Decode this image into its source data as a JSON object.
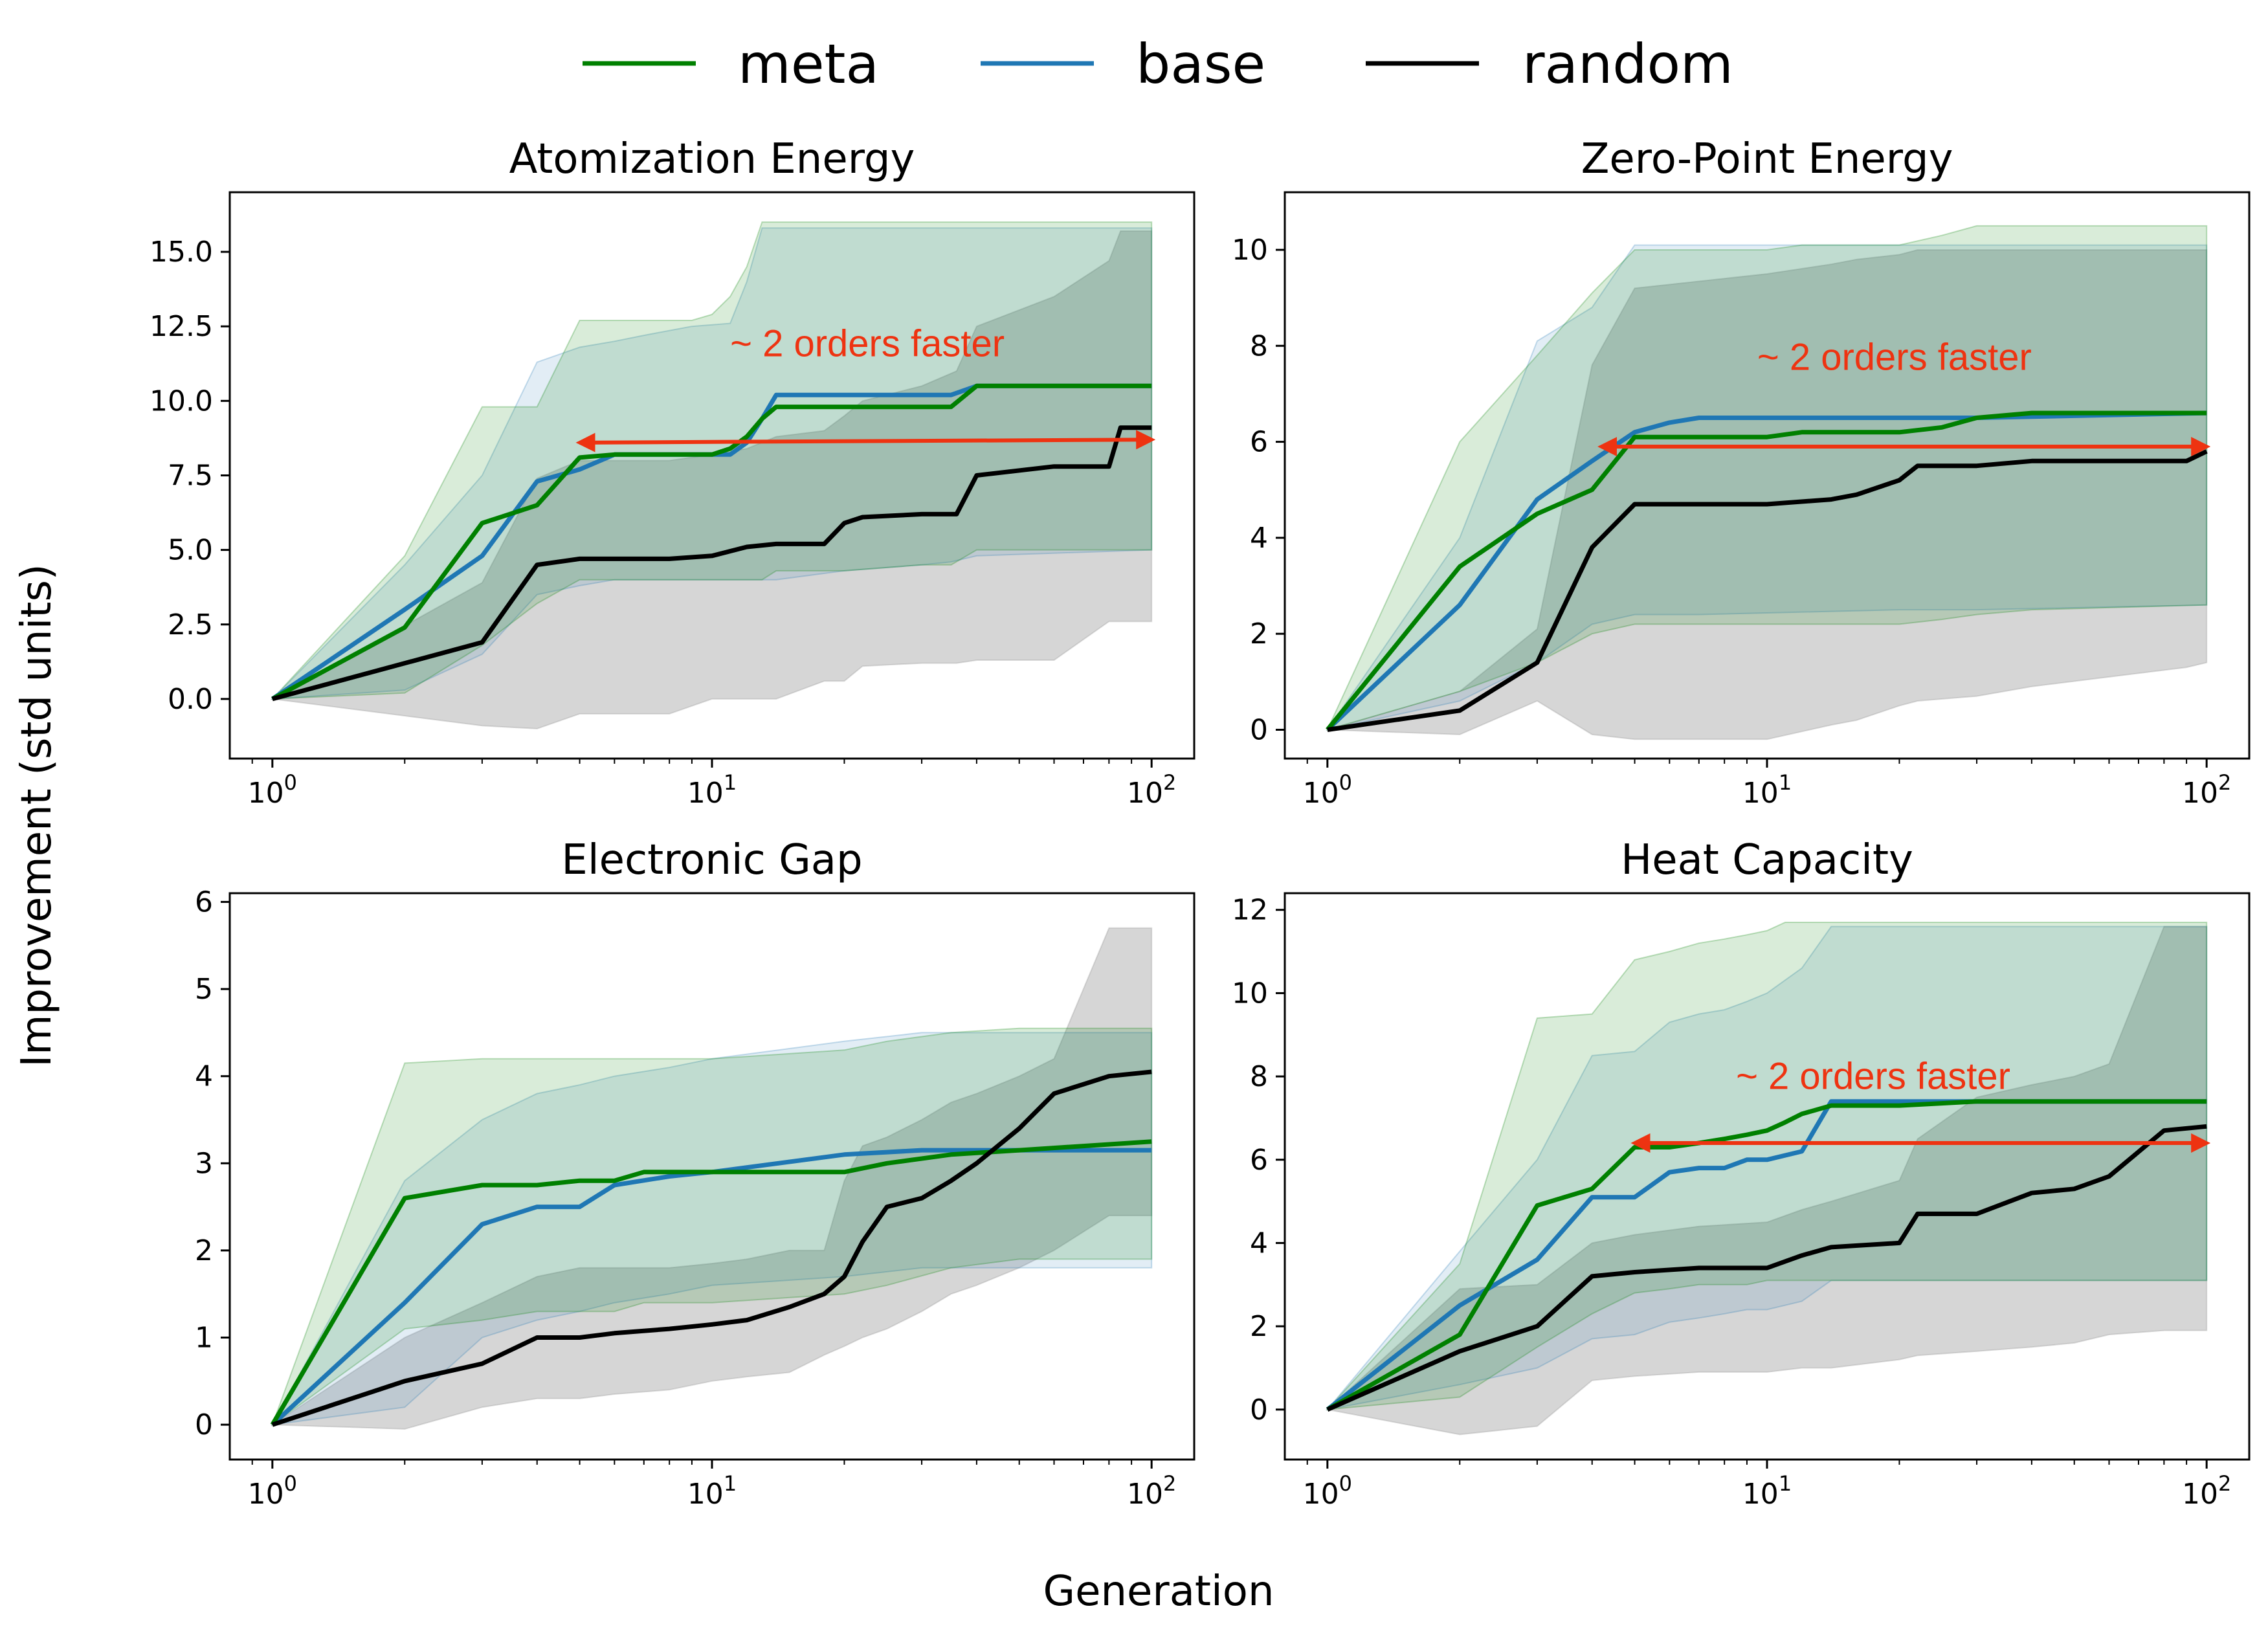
{
  "figure": {
    "xlabel": "Generation",
    "ylabel": "Improvement (std units)"
  },
  "legend": {
    "position": "top-center",
    "entries": [
      {
        "name": "meta",
        "color": "#008000"
      },
      {
        "name": "base",
        "color": "#1f77b4"
      },
      {
        "name": "random",
        "color": "#000000"
      }
    ]
  },
  "chart_data": [
    {
      "type": "line",
      "title": "Atomization Energy",
      "x_scale": "log",
      "xlim": [
        0.8,
        125
      ],
      "ylim": [
        -2.0,
        17.0
      ],
      "xticks": [
        1,
        10,
        100
      ],
      "xtick_labels": [
        {
          "base": "10",
          "exp": "0"
        },
        {
          "base": "10",
          "exp": "1"
        },
        {
          "base": "10",
          "exp": "2"
        }
      ],
      "yticks": [
        0,
        2.5,
        5,
        7.5,
        10,
        12.5,
        15
      ],
      "ytick_labels": [
        "0.0",
        "2.5",
        "5.0",
        "7.5",
        "10.0",
        "12.5",
        "15.0"
      ],
      "annotation": {
        "text": "~ 2 orders faster",
        "text_x": 11,
        "text_y": 11.5,
        "arrow_from": [
          5,
          8.6
        ],
        "arrow_to": [
          100,
          8.7
        ]
      },
      "series": [
        {
          "name": "meta",
          "color": "#008000",
          "x": [
            1,
            2,
            3,
            4,
            5,
            6,
            7,
            9,
            10,
            11,
            12,
            13,
            14,
            20,
            30,
            35,
            40,
            100
          ],
          "y": [
            0,
            2.4,
            5.9,
            6.5,
            8.1,
            8.2,
            8.2,
            8.2,
            8.2,
            8.4,
            8.8,
            9.4,
            9.8,
            9.8,
            9.8,
            9.8,
            10.5,
            10.5
          ],
          "band_upper": [
            0,
            4.8,
            9.8,
            9.8,
            12.7,
            12.7,
            12.7,
            12.7,
            12.9,
            13.5,
            14.5,
            16.0,
            16.0,
            16.0,
            16.0,
            16.0,
            16.0,
            16.0
          ],
          "band_lower": [
            0,
            0.2,
            1.8,
            3.2,
            4.0,
            4.0,
            4.0,
            4.0,
            4.0,
            4.0,
            4.0,
            4.0,
            4.3,
            4.3,
            4.5,
            4.5,
            5.0,
            5.0
          ]
        },
        {
          "name": "base",
          "color": "#1f77b4",
          "x": [
            1,
            2,
            3,
            4,
            5,
            6,
            7,
            9,
            11,
            12,
            13,
            14,
            20,
            30,
            35,
            40,
            100
          ],
          "y": [
            0,
            3.0,
            4.8,
            7.3,
            7.7,
            8.2,
            8.2,
            8.2,
            8.2,
            8.6,
            9.4,
            10.2,
            10.2,
            10.2,
            10.2,
            10.5,
            10.5
          ],
          "band_upper": [
            0,
            4.5,
            7.5,
            11.3,
            11.8,
            12.0,
            12.2,
            12.5,
            12.6,
            14.0,
            15.8,
            15.8,
            15.8,
            15.8,
            15.8,
            15.8,
            15.8
          ],
          "band_lower": [
            0,
            0.3,
            1.5,
            3.5,
            3.8,
            4.0,
            4.0,
            4.0,
            4.0,
            4.0,
            4.0,
            4.0,
            4.3,
            4.5,
            4.6,
            4.8,
            5.0
          ]
        },
        {
          "name": "random",
          "color": "#000000",
          "x": [
            1,
            3,
            4,
            5,
            8,
            10,
            12,
            14,
            18,
            20,
            22,
            30,
            36,
            40,
            60,
            80,
            85,
            100
          ],
          "y": [
            0,
            1.9,
            4.5,
            4.7,
            4.7,
            4.8,
            5.1,
            5.2,
            5.2,
            5.9,
            6.1,
            6.2,
            6.2,
            7.5,
            7.8,
            7.8,
            9.1,
            9.1
          ],
          "band_upper": [
            0,
            3.9,
            7.4,
            8.0,
            8.0,
            8.2,
            8.4,
            8.8,
            9.0,
            9.5,
            10.0,
            10.5,
            11.0,
            12.5,
            13.5,
            14.7,
            15.7,
            15.7
          ],
          "band_lower": [
            0,
            -0.9,
            -1.0,
            -0.5,
            -0.5,
            0.0,
            0.0,
            0.0,
            0.6,
            0.6,
            1.1,
            1.2,
            1.2,
            1.3,
            1.3,
            2.6,
            2.6,
            2.6
          ]
        }
      ]
    },
    {
      "type": "line",
      "title": "Zero-Point Energy",
      "x_scale": "log",
      "xlim": [
        0.8,
        125
      ],
      "ylim": [
        -0.6,
        11.2
      ],
      "xticks": [
        1,
        10,
        100
      ],
      "xtick_labels": [
        {
          "base": "10",
          "exp": "0"
        },
        {
          "base": "10",
          "exp": "1"
        },
        {
          "base": "10",
          "exp": "2"
        }
      ],
      "yticks": [
        0,
        2,
        4,
        6,
        8,
        10
      ],
      "ytick_labels": [
        "0",
        "2",
        "4",
        "6",
        "8",
        "10"
      ],
      "annotation": {
        "text": "~ 2 orders faster",
        "text_x": 9.5,
        "text_y": 7.5,
        "arrow_from": [
          4.2,
          5.9
        ],
        "arrow_to": [
          100,
          5.9
        ]
      },
      "series": [
        {
          "name": "meta",
          "color": "#008000",
          "x": [
            1,
            2,
            3,
            4,
            5,
            6,
            10,
            12,
            20,
            25,
            30,
            40,
            100
          ],
          "y": [
            0,
            3.4,
            4.5,
            5.0,
            6.1,
            6.1,
            6.1,
            6.2,
            6.2,
            6.3,
            6.5,
            6.6,
            6.6
          ],
          "band_upper": [
            0,
            6.0,
            7.8,
            9.1,
            10.0,
            10.0,
            10.0,
            10.1,
            10.1,
            10.3,
            10.5,
            10.5,
            10.5
          ],
          "band_lower": [
            0,
            0.8,
            1.4,
            2.0,
            2.2,
            2.2,
            2.2,
            2.2,
            2.2,
            2.3,
            2.4,
            2.5,
            2.6
          ]
        },
        {
          "name": "base",
          "color": "#1f77b4",
          "x": [
            1,
            2,
            3,
            4,
            5,
            6,
            7,
            20,
            30,
            100
          ],
          "y": [
            0,
            2.6,
            4.8,
            5.6,
            6.2,
            6.4,
            6.5,
            6.5,
            6.5,
            6.6
          ],
          "band_upper": [
            0,
            4.0,
            8.1,
            8.8,
            10.1,
            10.1,
            10.1,
            10.1,
            10.1,
            10.1
          ],
          "band_lower": [
            0,
            0.6,
            1.4,
            2.2,
            2.4,
            2.4,
            2.4,
            2.5,
            2.5,
            2.6
          ]
        },
        {
          "name": "random",
          "color": "#000000",
          "x": [
            1,
            2,
            3,
            4,
            5,
            10,
            14,
            16,
            20,
            22,
            30,
            40,
            60,
            90,
            100
          ],
          "y": [
            0,
            0.4,
            1.4,
            3.8,
            4.7,
            4.7,
            4.8,
            4.9,
            5.2,
            5.5,
            5.5,
            5.6,
            5.6,
            5.6,
            5.8
          ],
          "band_upper": [
            0,
            0.8,
            2.1,
            7.6,
            9.2,
            9.5,
            9.7,
            9.8,
            9.9,
            10.0,
            10.0,
            10.0,
            10.0,
            10.0,
            10.0
          ],
          "band_lower": [
            0,
            -0.1,
            0.6,
            -0.1,
            -0.2,
            -0.2,
            0.1,
            0.2,
            0.5,
            0.6,
            0.7,
            0.9,
            1.1,
            1.3,
            1.4
          ]
        }
      ]
    },
    {
      "type": "line",
      "title": "Electronic Gap",
      "x_scale": "log",
      "xlim": [
        0.8,
        125
      ],
      "ylim": [
        -0.4,
        6.1
      ],
      "xticks": [
        1,
        10,
        100
      ],
      "xtick_labels": [
        {
          "base": "10",
          "exp": "0"
        },
        {
          "base": "10",
          "exp": "1"
        },
        {
          "base": "10",
          "exp": "2"
        }
      ],
      "yticks": [
        0,
        1,
        2,
        3,
        4,
        5,
        6
      ],
      "ytick_labels": [
        "0",
        "1",
        "2",
        "3",
        "4",
        "5",
        "6"
      ],
      "annotation": null,
      "series": [
        {
          "name": "meta",
          "color": "#008000",
          "x": [
            1,
            2,
            3,
            4,
            5,
            6,
            7,
            10,
            20,
            25,
            35,
            50,
            100
          ],
          "y": [
            0,
            2.6,
            2.75,
            2.75,
            2.8,
            2.8,
            2.9,
            2.9,
            2.9,
            3.0,
            3.1,
            3.15,
            3.25
          ],
          "band_upper": [
            0,
            4.15,
            4.2,
            4.2,
            4.2,
            4.2,
            4.2,
            4.2,
            4.3,
            4.4,
            4.5,
            4.55,
            4.55
          ],
          "band_lower": [
            0,
            1.1,
            1.2,
            1.3,
            1.3,
            1.3,
            1.4,
            1.4,
            1.5,
            1.6,
            1.8,
            1.9,
            1.9
          ]
        },
        {
          "name": "base",
          "color": "#1f77b4",
          "x": [
            1,
            2,
            3,
            4,
            5,
            6,
            8,
            10,
            20,
            30,
            50,
            100
          ],
          "y": [
            0,
            1.4,
            2.3,
            2.5,
            2.5,
            2.75,
            2.85,
            2.9,
            3.1,
            3.15,
            3.15,
            3.15
          ],
          "band_upper": [
            0,
            2.8,
            3.5,
            3.8,
            3.9,
            4.0,
            4.1,
            4.2,
            4.4,
            4.5,
            4.5,
            4.5
          ],
          "band_lower": [
            0,
            0.2,
            1.0,
            1.2,
            1.3,
            1.4,
            1.5,
            1.6,
            1.7,
            1.8,
            1.8,
            1.8
          ]
        },
        {
          "name": "random",
          "color": "#000000",
          "x": [
            1,
            2,
            3,
            4,
            5,
            6,
            8,
            10,
            12,
            15,
            18,
            20,
            22,
            25,
            30,
            35,
            40,
            50,
            60,
            80,
            100
          ],
          "y": [
            0,
            0.5,
            0.7,
            1.0,
            1.0,
            1.05,
            1.1,
            1.15,
            1.2,
            1.35,
            1.5,
            1.7,
            2.1,
            2.5,
            2.6,
            2.8,
            3.0,
            3.4,
            3.8,
            4.0,
            4.05
          ],
          "band_upper": [
            0,
            1.0,
            1.4,
            1.7,
            1.8,
            1.8,
            1.8,
            1.85,
            1.9,
            2.0,
            2.0,
            2.8,
            3.2,
            3.3,
            3.5,
            3.7,
            3.8,
            4.0,
            4.2,
            5.7,
            5.7
          ],
          "band_lower": [
            0,
            -0.05,
            0.2,
            0.3,
            0.3,
            0.35,
            0.4,
            0.5,
            0.55,
            0.6,
            0.8,
            0.9,
            1.0,
            1.1,
            1.3,
            1.5,
            1.6,
            1.8,
            2.0,
            2.4,
            2.4
          ]
        }
      ]
    },
    {
      "type": "line",
      "title": "Heat Capacity",
      "x_scale": "log",
      "xlim": [
        0.8,
        125
      ],
      "ylim": [
        -1.2,
        12.4
      ],
      "xticks": [
        1,
        10,
        100
      ],
      "xtick_labels": [
        {
          "base": "10",
          "exp": "0"
        },
        {
          "base": "10",
          "exp": "1"
        },
        {
          "base": "10",
          "exp": "2"
        }
      ],
      "yticks": [
        0,
        2,
        4,
        6,
        8,
        10,
        12
      ],
      "ytick_labels": [
        "0",
        "2",
        "4",
        "6",
        "8",
        "10",
        "12"
      ],
      "annotation": {
        "text": "~ 2 orders faster",
        "text_x": 8.5,
        "text_y": 7.7,
        "arrow_from": [
          5,
          6.4
        ],
        "arrow_to": [
          100,
          6.4
        ]
      },
      "series": [
        {
          "name": "meta",
          "color": "#008000",
          "x": [
            1,
            2,
            3,
            4,
            5,
            6,
            7,
            8,
            9,
            10,
            11,
            12,
            14,
            20,
            30,
            100
          ],
          "y": [
            0,
            1.8,
            4.9,
            5.3,
            6.3,
            6.3,
            6.4,
            6.5,
            6.6,
            6.7,
            6.9,
            7.1,
            7.3,
            7.3,
            7.4,
            7.4
          ],
          "band_upper": [
            0,
            3.5,
            9.4,
            9.5,
            10.8,
            11.0,
            11.2,
            11.3,
            11.4,
            11.5,
            11.7,
            11.7,
            11.7,
            11.7,
            11.7,
            11.7
          ],
          "band_lower": [
            0,
            0.3,
            1.5,
            2.3,
            2.8,
            2.9,
            3.0,
            3.0,
            3.0,
            3.1,
            3.1,
            3.1,
            3.1,
            3.1,
            3.1,
            3.1
          ]
        },
        {
          "name": "base",
          "color": "#1f77b4",
          "x": [
            1,
            2,
            3,
            4,
            5,
            6,
            7,
            8,
            9,
            10,
            12,
            14,
            20,
            30,
            100
          ],
          "y": [
            0,
            2.5,
            3.6,
            5.1,
            5.1,
            5.7,
            5.8,
            5.8,
            6.0,
            6.0,
            6.2,
            7.4,
            7.4,
            7.4,
            7.4
          ],
          "band_upper": [
            0,
            3.8,
            6.0,
            8.5,
            8.6,
            9.3,
            9.5,
            9.6,
            9.8,
            10.0,
            10.6,
            11.6,
            11.6,
            11.6,
            11.6
          ],
          "band_lower": [
            0,
            0.6,
            1.0,
            1.7,
            1.8,
            2.1,
            2.2,
            2.3,
            2.4,
            2.4,
            2.6,
            3.1,
            3.1,
            3.1,
            3.1
          ]
        },
        {
          "name": "random",
          "color": "#000000",
          "x": [
            1,
            2,
            3,
            4,
            5,
            7,
            10,
            12,
            14,
            20,
            22,
            30,
            40,
            50,
            60,
            80,
            100
          ],
          "y": [
            0,
            1.4,
            2.0,
            3.2,
            3.3,
            3.4,
            3.4,
            3.7,
            3.9,
            4.0,
            4.7,
            4.7,
            5.2,
            5.3,
            5.6,
            6.7,
            6.8
          ],
          "band_upper": [
            0,
            2.9,
            3.0,
            4.0,
            4.2,
            4.4,
            4.5,
            4.8,
            5.0,
            5.5,
            6.5,
            7.5,
            7.8,
            8.0,
            8.3,
            11.6,
            11.6
          ],
          "band_lower": [
            0,
            -0.6,
            -0.4,
            0.7,
            0.8,
            0.9,
            0.9,
            1.0,
            1.0,
            1.2,
            1.3,
            1.4,
            1.5,
            1.6,
            1.8,
            1.9,
            1.9
          ]
        }
      ]
    }
  ]
}
